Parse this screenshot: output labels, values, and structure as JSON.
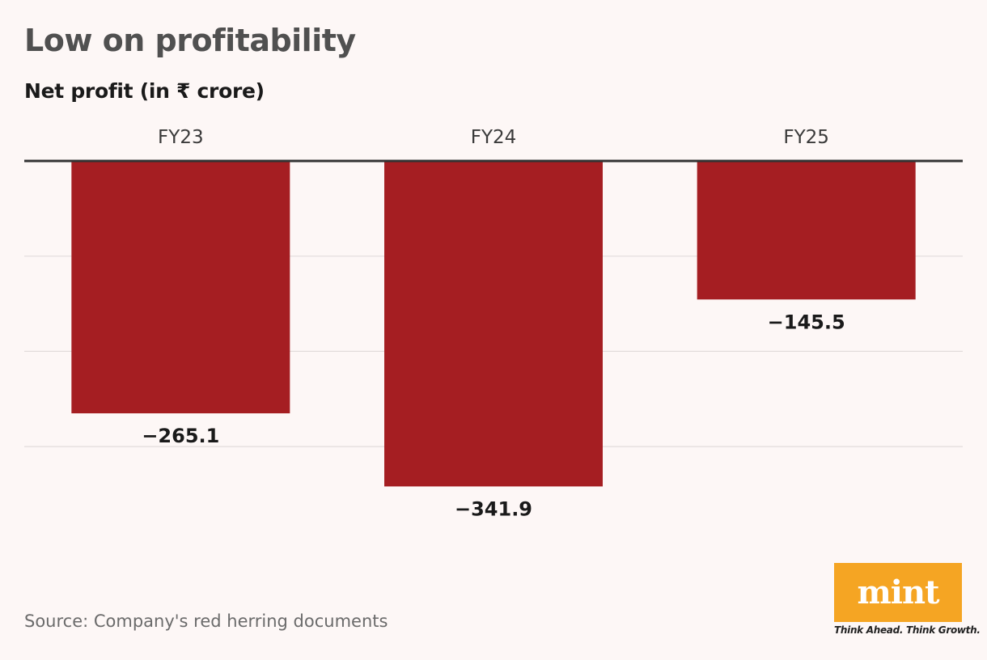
{
  "chart_data": {
    "type": "bar",
    "title": "Low on profitability",
    "subtitle": "Net profit (in ₹ crore)",
    "categories": [
      "FY23",
      "FY24",
      "FY25"
    ],
    "values": [
      -265.1,
      -341.9,
      -145.5
    ],
    "value_labels": [
      "−265.1",
      "−341.9",
      "−145.5"
    ],
    "ylim": [
      -400,
      0
    ],
    "gridlines": [
      0,
      -100,
      -200,
      -300
    ],
    "grid": true,
    "category_axis_position": "top",
    "bar_color": "#a51e22",
    "xlabel": "",
    "ylabel": ""
  },
  "source": "Source: Company's red herring documents",
  "branding": {
    "logo_text": "mint",
    "tagline": "Think Ahead. Think Growth.",
    "logo_color": "#f5a523"
  }
}
